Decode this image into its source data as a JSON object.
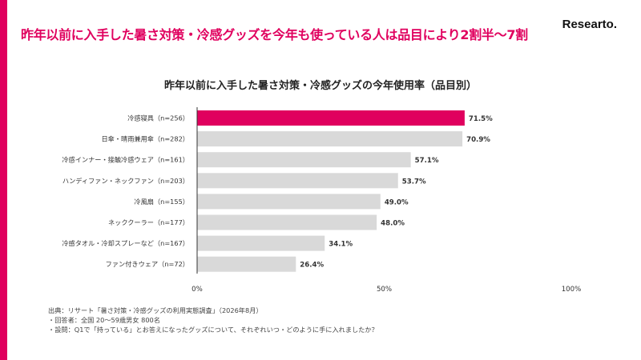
{
  "brand": "Researto.",
  "headline": "昨年以前に入手した暑さ対策・冷感グッズを今年も使っている人は品目により2割半〜7割",
  "colors": {
    "accent": "#e0005e",
    "highlight_bar": "#e0005e",
    "bar": "#d9d9d9",
    "axis": "#333333"
  },
  "chart_data": {
    "type": "bar",
    "orientation": "horizontal",
    "title": "昨年以前に入手した暑さ対策・冷感グッズの今年使用率（品目別）",
    "categories": [
      "冷感寝具（n=256）",
      "日傘・晴雨兼用傘（n=282）",
      "冷感インナー・接触冷感ウェア（n=161）",
      "ハンディファン・ネックファン（n=203）",
      "冷風扇（n=155）",
      "ネッククーラー（n=177）",
      "冷感タオル・冷却スプレーなど（n=167）",
      "ファン付きウェア（n=72）"
    ],
    "values": [
      71.5,
      70.9,
      57.1,
      53.7,
      49.0,
      48.0,
      34.1,
      26.4
    ],
    "value_labels": [
      "71.5%",
      "70.9%",
      "57.1%",
      "53.7%",
      "49.0%",
      "48.0%",
      "34.1%",
      "26.4%"
    ],
    "highlight_index": 0,
    "xlim": [
      0,
      100
    ],
    "x_ticks": [
      "0%",
      "50%",
      "100%"
    ],
    "grid": false
  },
  "footnotes": [
    "出典：リサート「暑さ対策・冷感グッズの利用実態調査」（2026年8月）",
    "・回答者：全国 20〜59歳男女 800名",
    "・設問：Q1で「持っている」とお答えになったグッズについて、それぞれいつ・どのように手に入れましたか？"
  ]
}
